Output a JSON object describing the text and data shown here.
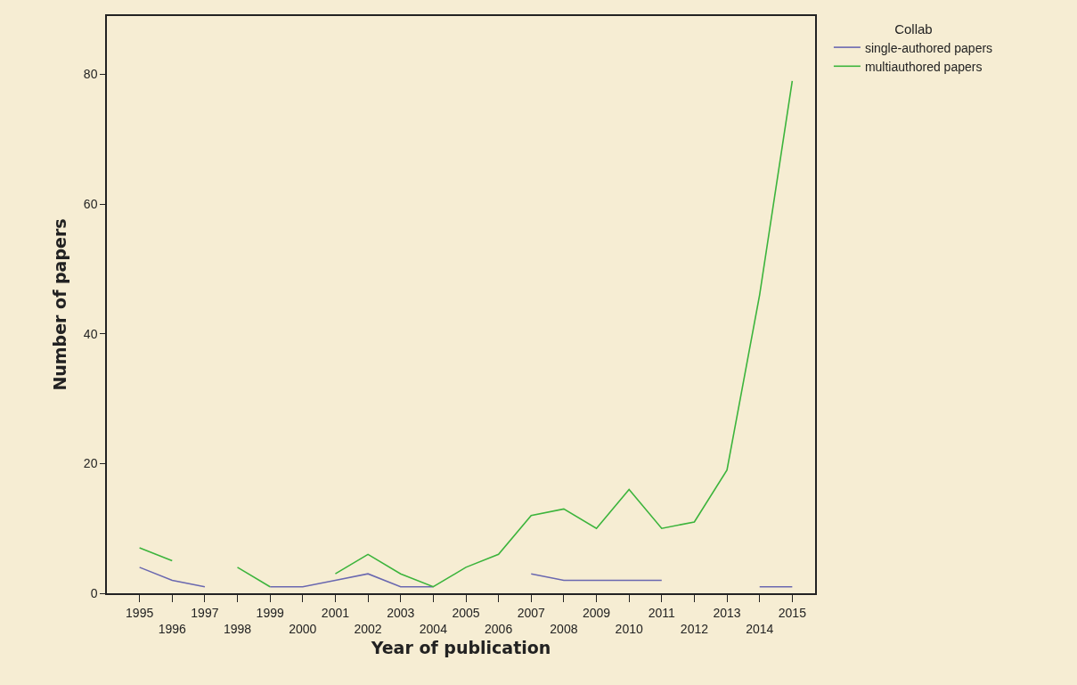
{
  "chart_data": {
    "type": "line",
    "xlabel": "Year of publication",
    "ylabel": "Number of papers",
    "legend_title": "Collab",
    "categories": [
      "1995",
      "1996",
      "1997",
      "1998",
      "1999",
      "2000",
      "2001",
      "2002",
      "2003",
      "2004",
      "2005",
      "2006",
      "2007",
      "2008",
      "2009",
      "2010",
      "2011",
      "2012",
      "2013",
      "2014",
      "2015"
    ],
    "series": [
      {
        "name": "single-authored papers",
        "color": "#6a68b0",
        "values": [
          4,
          2,
          1,
          null,
          1,
          1,
          2,
          3,
          1,
          1,
          null,
          null,
          3,
          2,
          2,
          2,
          2,
          null,
          null,
          1,
          1
        ]
      },
      {
        "name": "multiauthored papers",
        "color": "#3cb43c",
        "values": [
          7,
          5,
          null,
          4,
          1,
          null,
          3,
          6,
          3,
          1,
          4,
          6,
          12,
          13,
          10,
          16,
          10,
          11,
          19,
          46,
          79
        ]
      }
    ],
    "ylim": [
      0,
      89
    ],
    "yticks": [
      0,
      20,
      40,
      60,
      80
    ],
    "grid": false,
    "legend": "top right",
    "marker": "none",
    "line_style": "solid"
  }
}
